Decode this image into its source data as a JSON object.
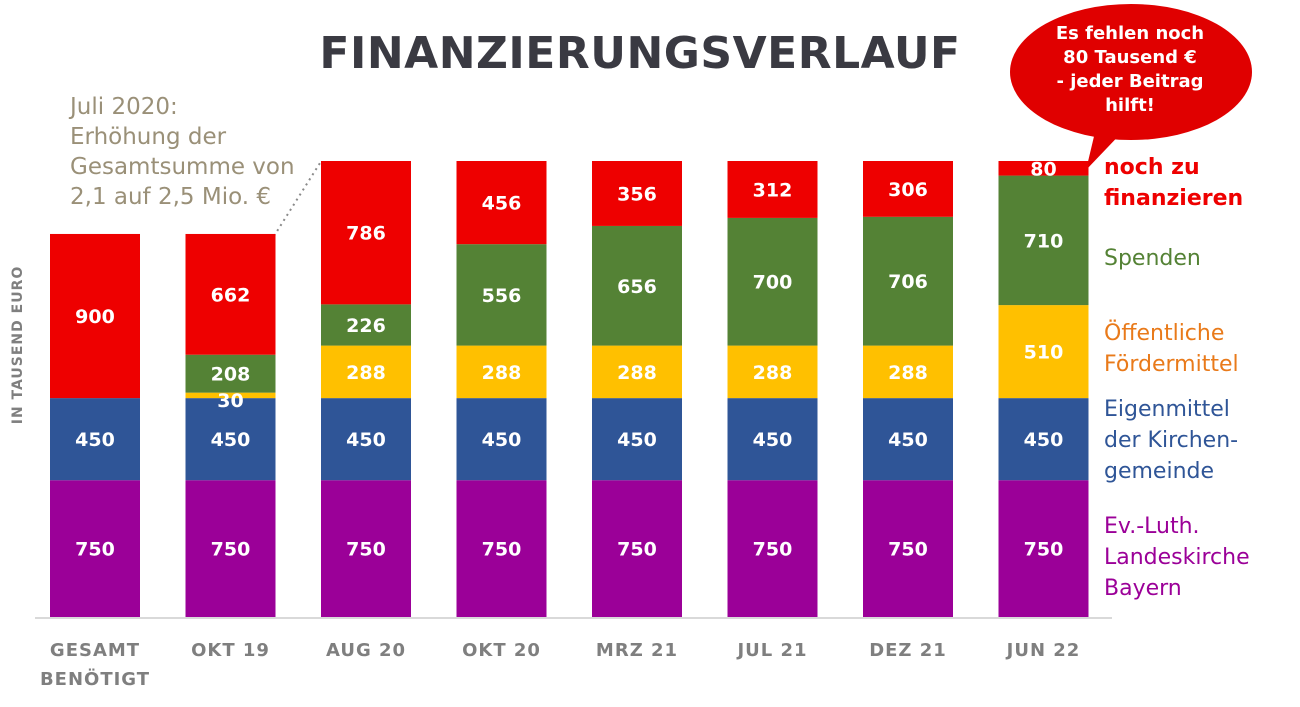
{
  "title": "FINANZIERUNGSVERLAUF",
  "annotation": "Juli 2020:\nErhöhung der\nGesamtsumme von\n2,1 auf 2,5 Mio. €",
  "callout": "Es fehlen noch\n80 Tausend  €\n- jeder Beitrag\nhilft!",
  "colors": {
    "landeskirche": "#9b0098",
    "eigenmittel": "#2f5597",
    "foerdermittel": "#ffc000",
    "spenden": "#548235",
    "offen": "#ee0000",
    "bubble": "#e00000",
    "axis_text": "#7f7f7f",
    "annotation": "#9a9078"
  },
  "chart_data": {
    "type": "bar",
    "stacked": true,
    "ylabel": "IN TAUSEND EURO",
    "categories": [
      [
        "GESAMT",
        "BENÖTIGT"
      ],
      [
        "OKT 19"
      ],
      [
        "AUG 20"
      ],
      [
        "OKT 20"
      ],
      [
        "MRZ 21"
      ],
      [
        "JUL 21"
      ],
      [
        "DEZ 21"
      ],
      [
        "JUN 22"
      ]
    ],
    "series": [
      {
        "key": "landeskirche",
        "name": "Ev.-Luth.\nLandeskirche\nBayern",
        "values": [
          750,
          750,
          750,
          750,
          750,
          750,
          750,
          750
        ]
      },
      {
        "key": "eigenmittel",
        "name": "Eigenmittel\nder Kirchen-\ngemeinde",
        "values": [
          450,
          450,
          450,
          450,
          450,
          450,
          450,
          450
        ]
      },
      {
        "key": "foerdermittel",
        "name": "Öffentliche\nFördermittel",
        "values": [
          0,
          30,
          288,
          288,
          288,
          288,
          288,
          510
        ]
      },
      {
        "key": "spenden",
        "name": "Spenden",
        "values": [
          0,
          208,
          226,
          556,
          656,
          700,
          706,
          710
        ]
      },
      {
        "key": "offen",
        "name": "noch zu\nfinanzieren",
        "values": [
          900,
          662,
          786,
          456,
          356,
          312,
          306,
          80
        ]
      }
    ],
    "ylim": [
      0,
      2500
    ],
    "grid": false,
    "legend": "right"
  }
}
